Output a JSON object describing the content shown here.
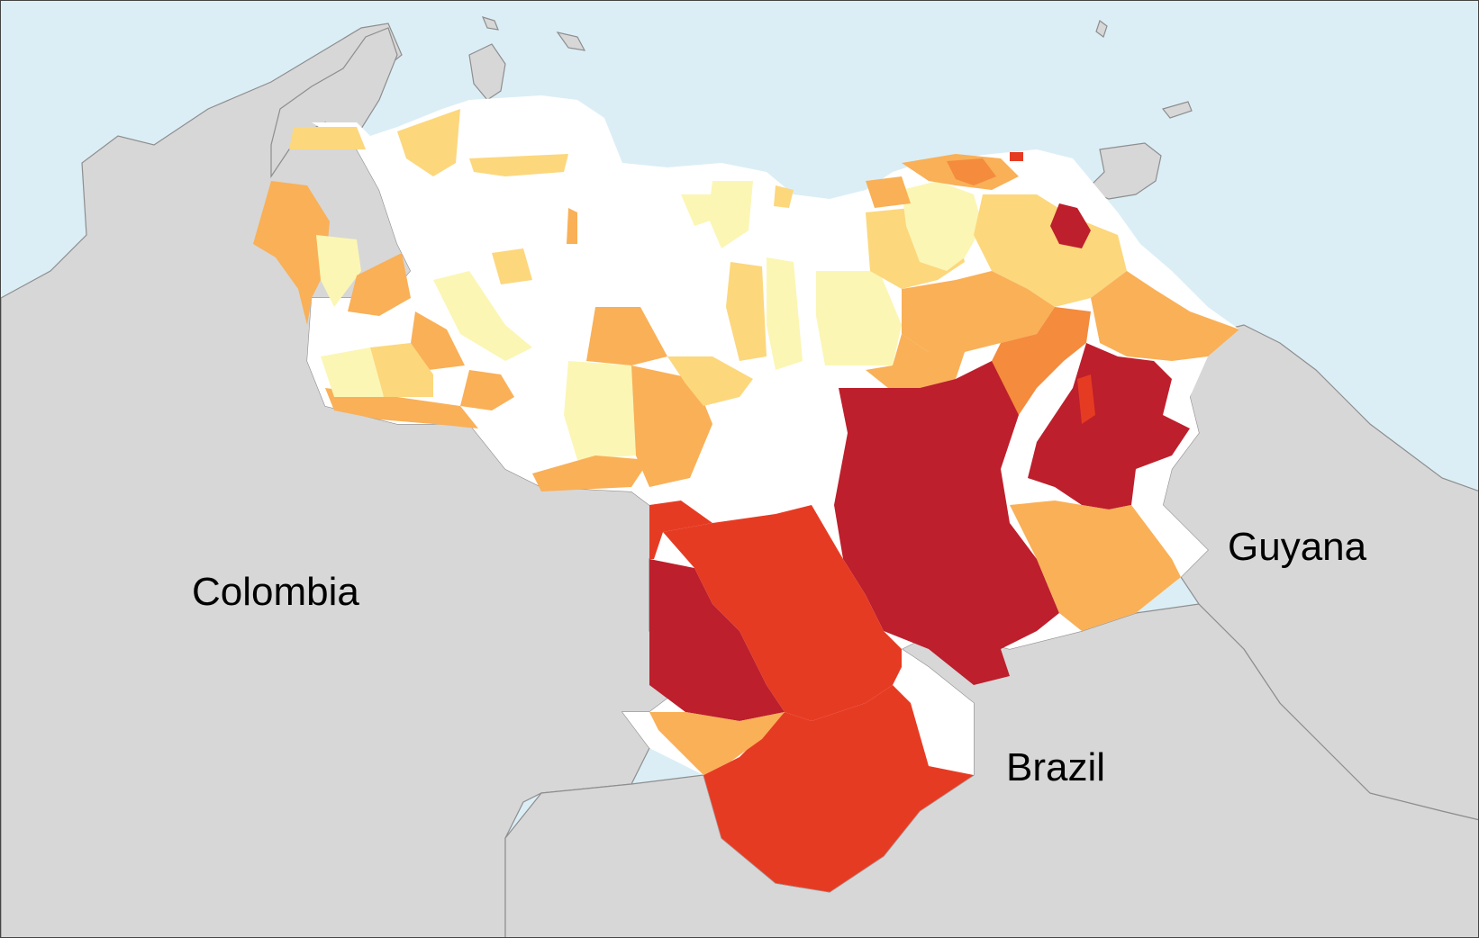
{
  "map": {
    "labels": {
      "colombia": "Colombia",
      "brazil": "Brazil",
      "guyana": "Guyana"
    },
    "colors": {
      "sea": "#dbeef6",
      "neighbor_land": "#d7d7d7",
      "border": "#8e8e8e",
      "scale": [
        "#ffffff",
        "#fbf6b4",
        "#fcd77c",
        "#f9b057",
        "#f48b3d",
        "#e63b23",
        "#bd1f2c"
      ]
    }
  }
}
